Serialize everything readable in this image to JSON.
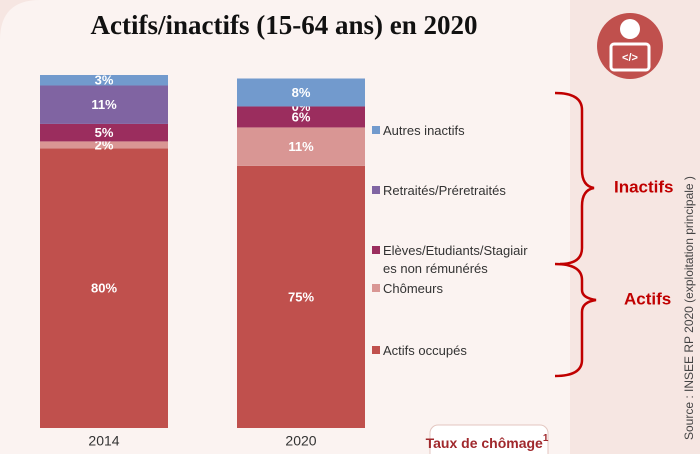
{
  "chart_data": {
    "type": "stacked_bar",
    "title": "Actifs/inactifs (15-64 ans) en 2020",
    "categories": [
      "2014",
      "2020"
    ],
    "series": [
      {
        "name": "Actifs occupés",
        "color": "#c0504d",
        "values": [
          80,
          75
        ],
        "value_labels": [
          "80%",
          "75%"
        ]
      },
      {
        "name": "Chômeurs",
        "color": "#d99694",
        "values": [
          2,
          11
        ],
        "value_labels": [
          "2%",
          "11%"
        ]
      },
      {
        "name": "Elèves/Etudiants/Stagiaires non rémunérés",
        "color": "#9b2d5e",
        "values": [
          5,
          6
        ],
        "value_labels": [
          "5%",
          "6%"
        ]
      },
      {
        "name": "Retraités/Préretraités",
        "color": "#8064a2",
        "values": [
          11,
          0
        ],
        "value_labels": [
          "11%",
          "0%"
        ]
      },
      {
        "name": "Autres inactifs",
        "color": "#729acd",
        "values": [
          3,
          8
        ],
        "value_labels": [
          "3%",
          "8%"
        ]
      }
    ],
    "groups": [
      "Inactifs",
      "Actifs"
    ],
    "box": {
      "text": "Taux de chômage",
      "sup": "1"
    },
    "source": "Source : INSEE RP 2020 (exploitation principale )"
  }
}
